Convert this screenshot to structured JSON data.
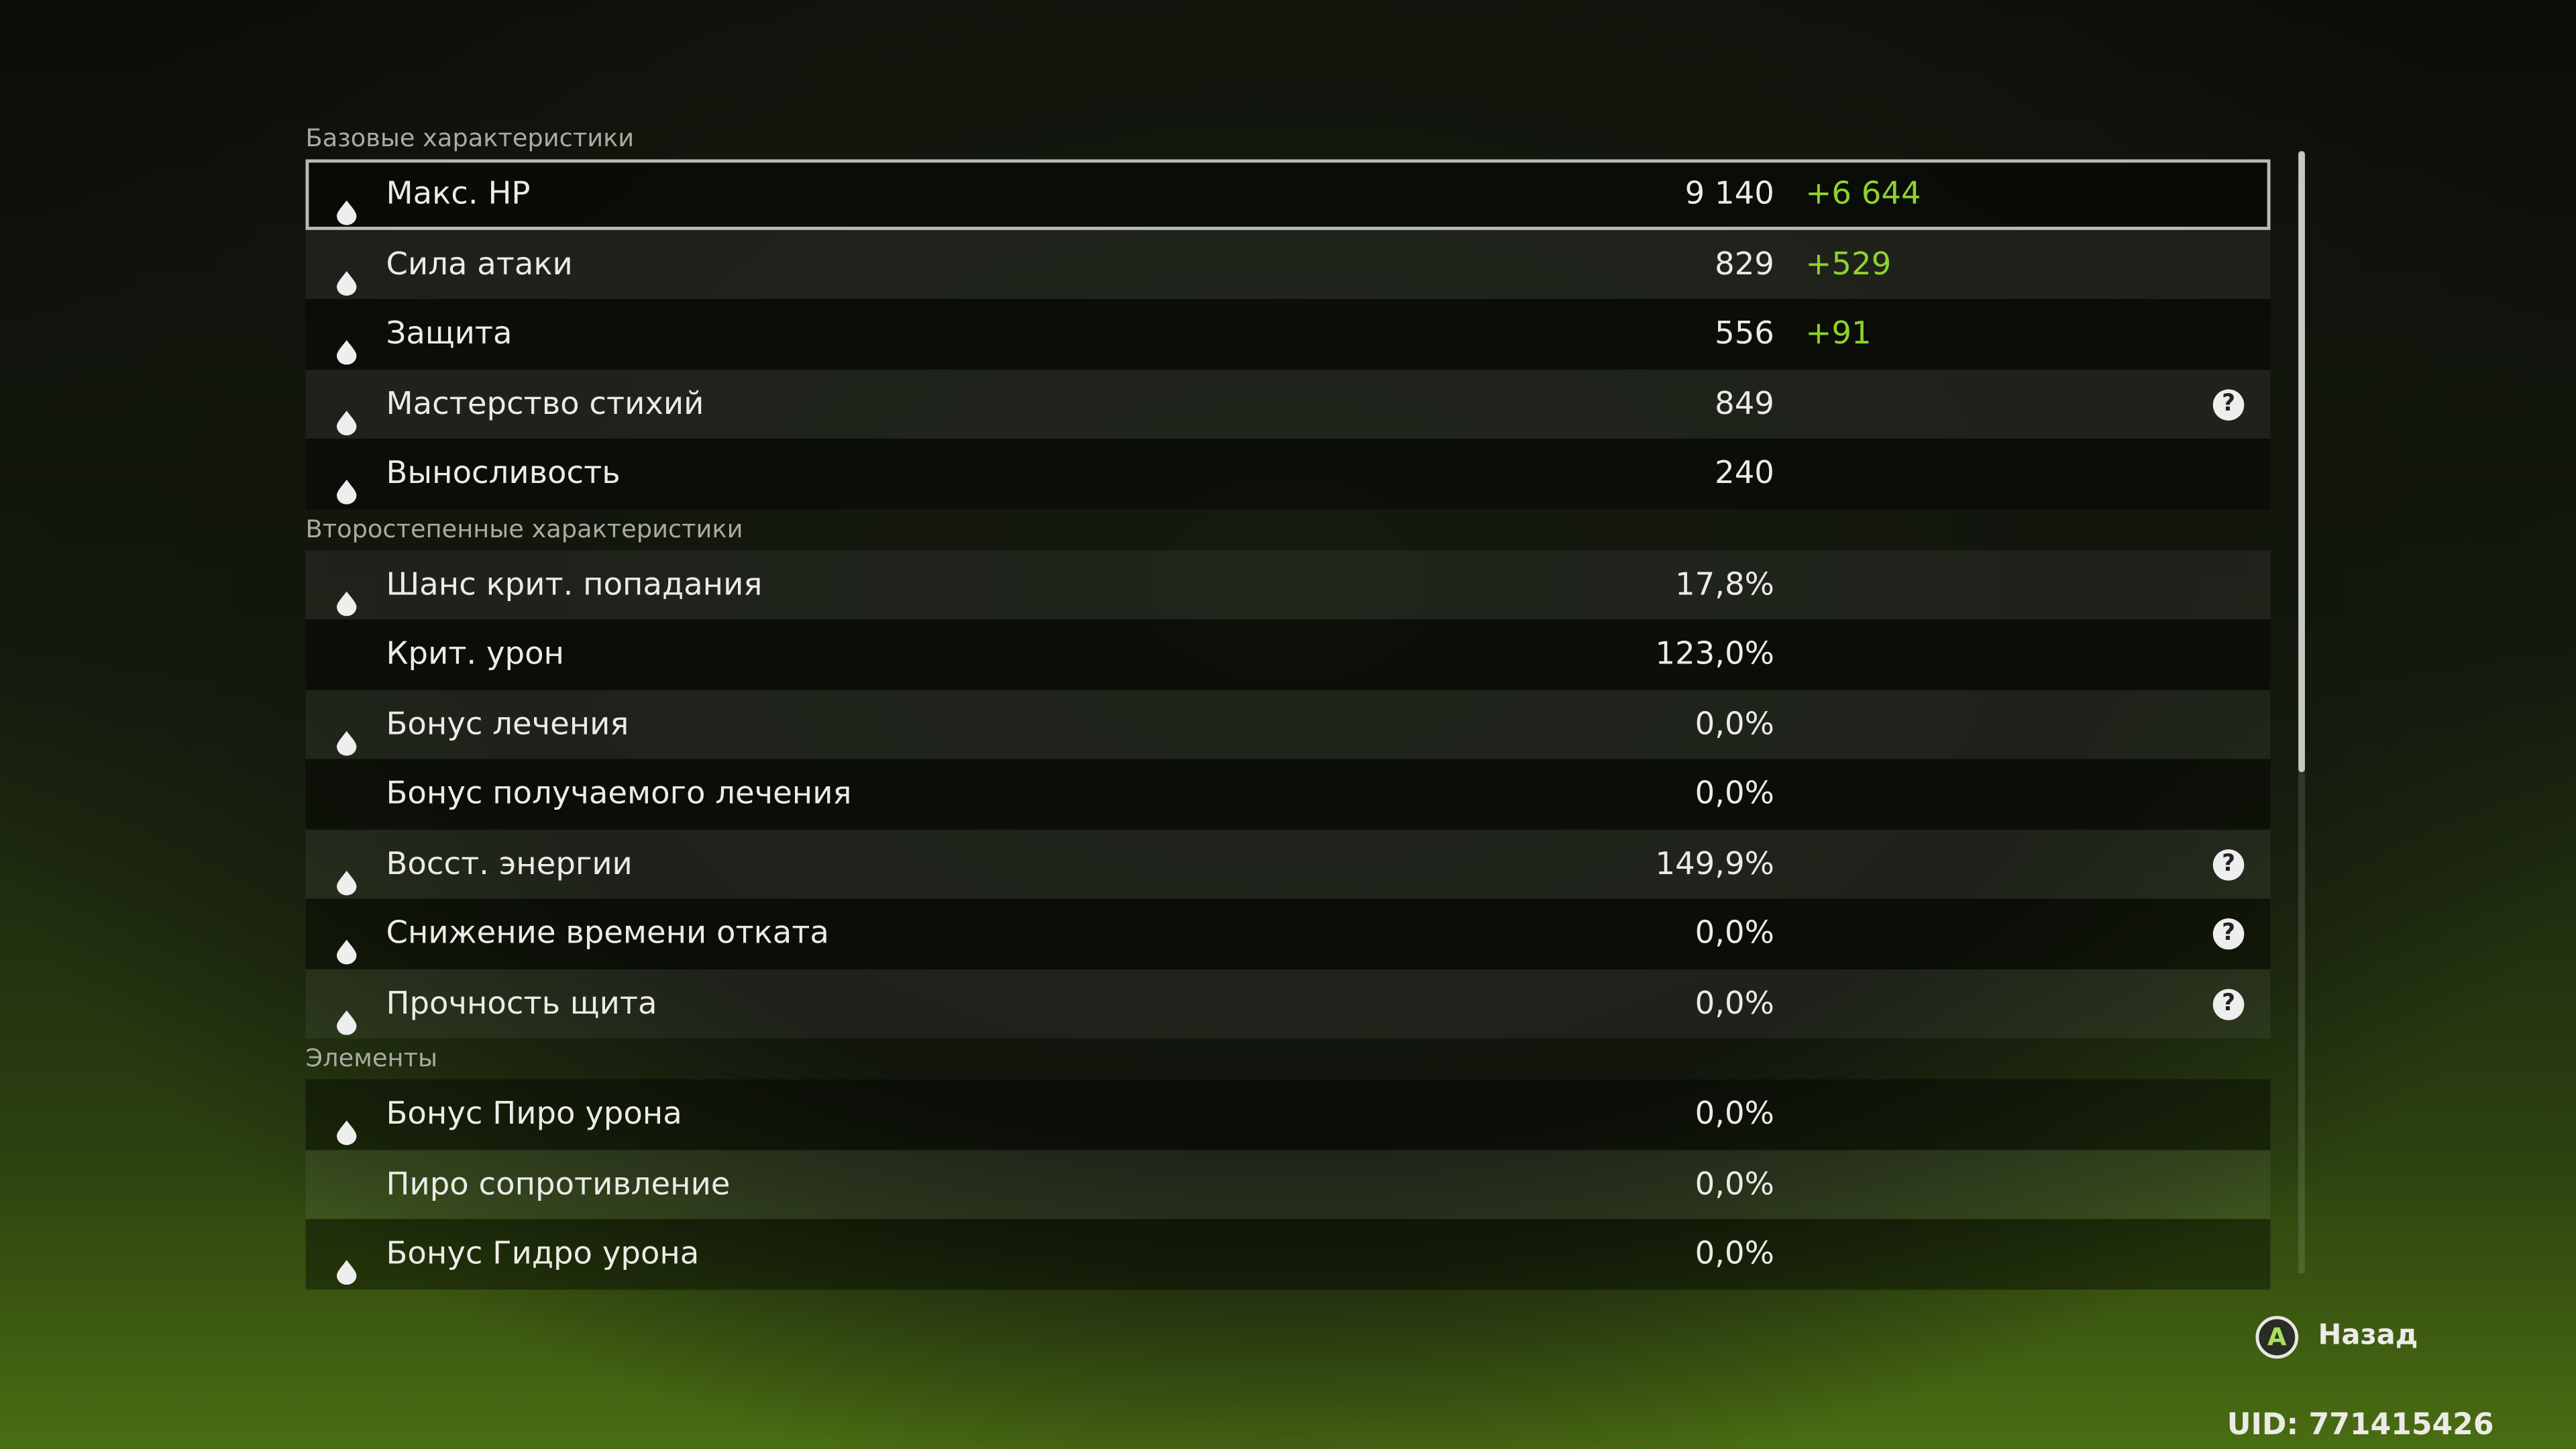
{
  "sections": [
    {
      "title": "Базовые характеристики",
      "rows": [
        {
          "name": "Макс. HP",
          "value": "9 140",
          "bonus": "+6 644",
          "icon": true,
          "selected": true
        },
        {
          "name": "Сила атаки",
          "value": "829",
          "bonus": "+529",
          "icon": true
        },
        {
          "name": "Защита",
          "value": "556",
          "bonus": "+91",
          "icon": true
        },
        {
          "name": "Мастерство стихий",
          "value": "849",
          "icon": true,
          "help": true
        },
        {
          "name": "Выносливость",
          "value": "240",
          "icon": true
        }
      ]
    },
    {
      "title": "Второстепенные характеристики",
      "rows": [
        {
          "name": "Шанс крит. попадания",
          "value": "17,8%",
          "icon": true
        },
        {
          "name": "Крит. урон",
          "value": "123,0%"
        },
        {
          "name": "Бонус лечения",
          "value": "0,0%",
          "icon": true
        },
        {
          "name": "Бонус получаемого лечения",
          "value": "0,0%"
        },
        {
          "name": "Восст. энергии",
          "value": "149,9%",
          "icon": true,
          "help": true
        },
        {
          "name": "Снижение времени отката",
          "value": "0,0%",
          "icon": true,
          "help": true
        },
        {
          "name": "Прочность щита",
          "value": "0,0%",
          "icon": true,
          "help": true
        }
      ]
    },
    {
      "title": "Элементы",
      "rows": [
        {
          "name": "Бонус Пиро урона",
          "value": "0,0%",
          "icon": true
        },
        {
          "name": "Пиро сопротивление",
          "value": "0,0%"
        },
        {
          "name": "Бонус Гидро урона",
          "value": "0,0%",
          "icon": true
        }
      ]
    }
  ],
  "footer": {
    "back_button": "A",
    "back_label": "Назад",
    "uid": "UID: 771415426"
  }
}
